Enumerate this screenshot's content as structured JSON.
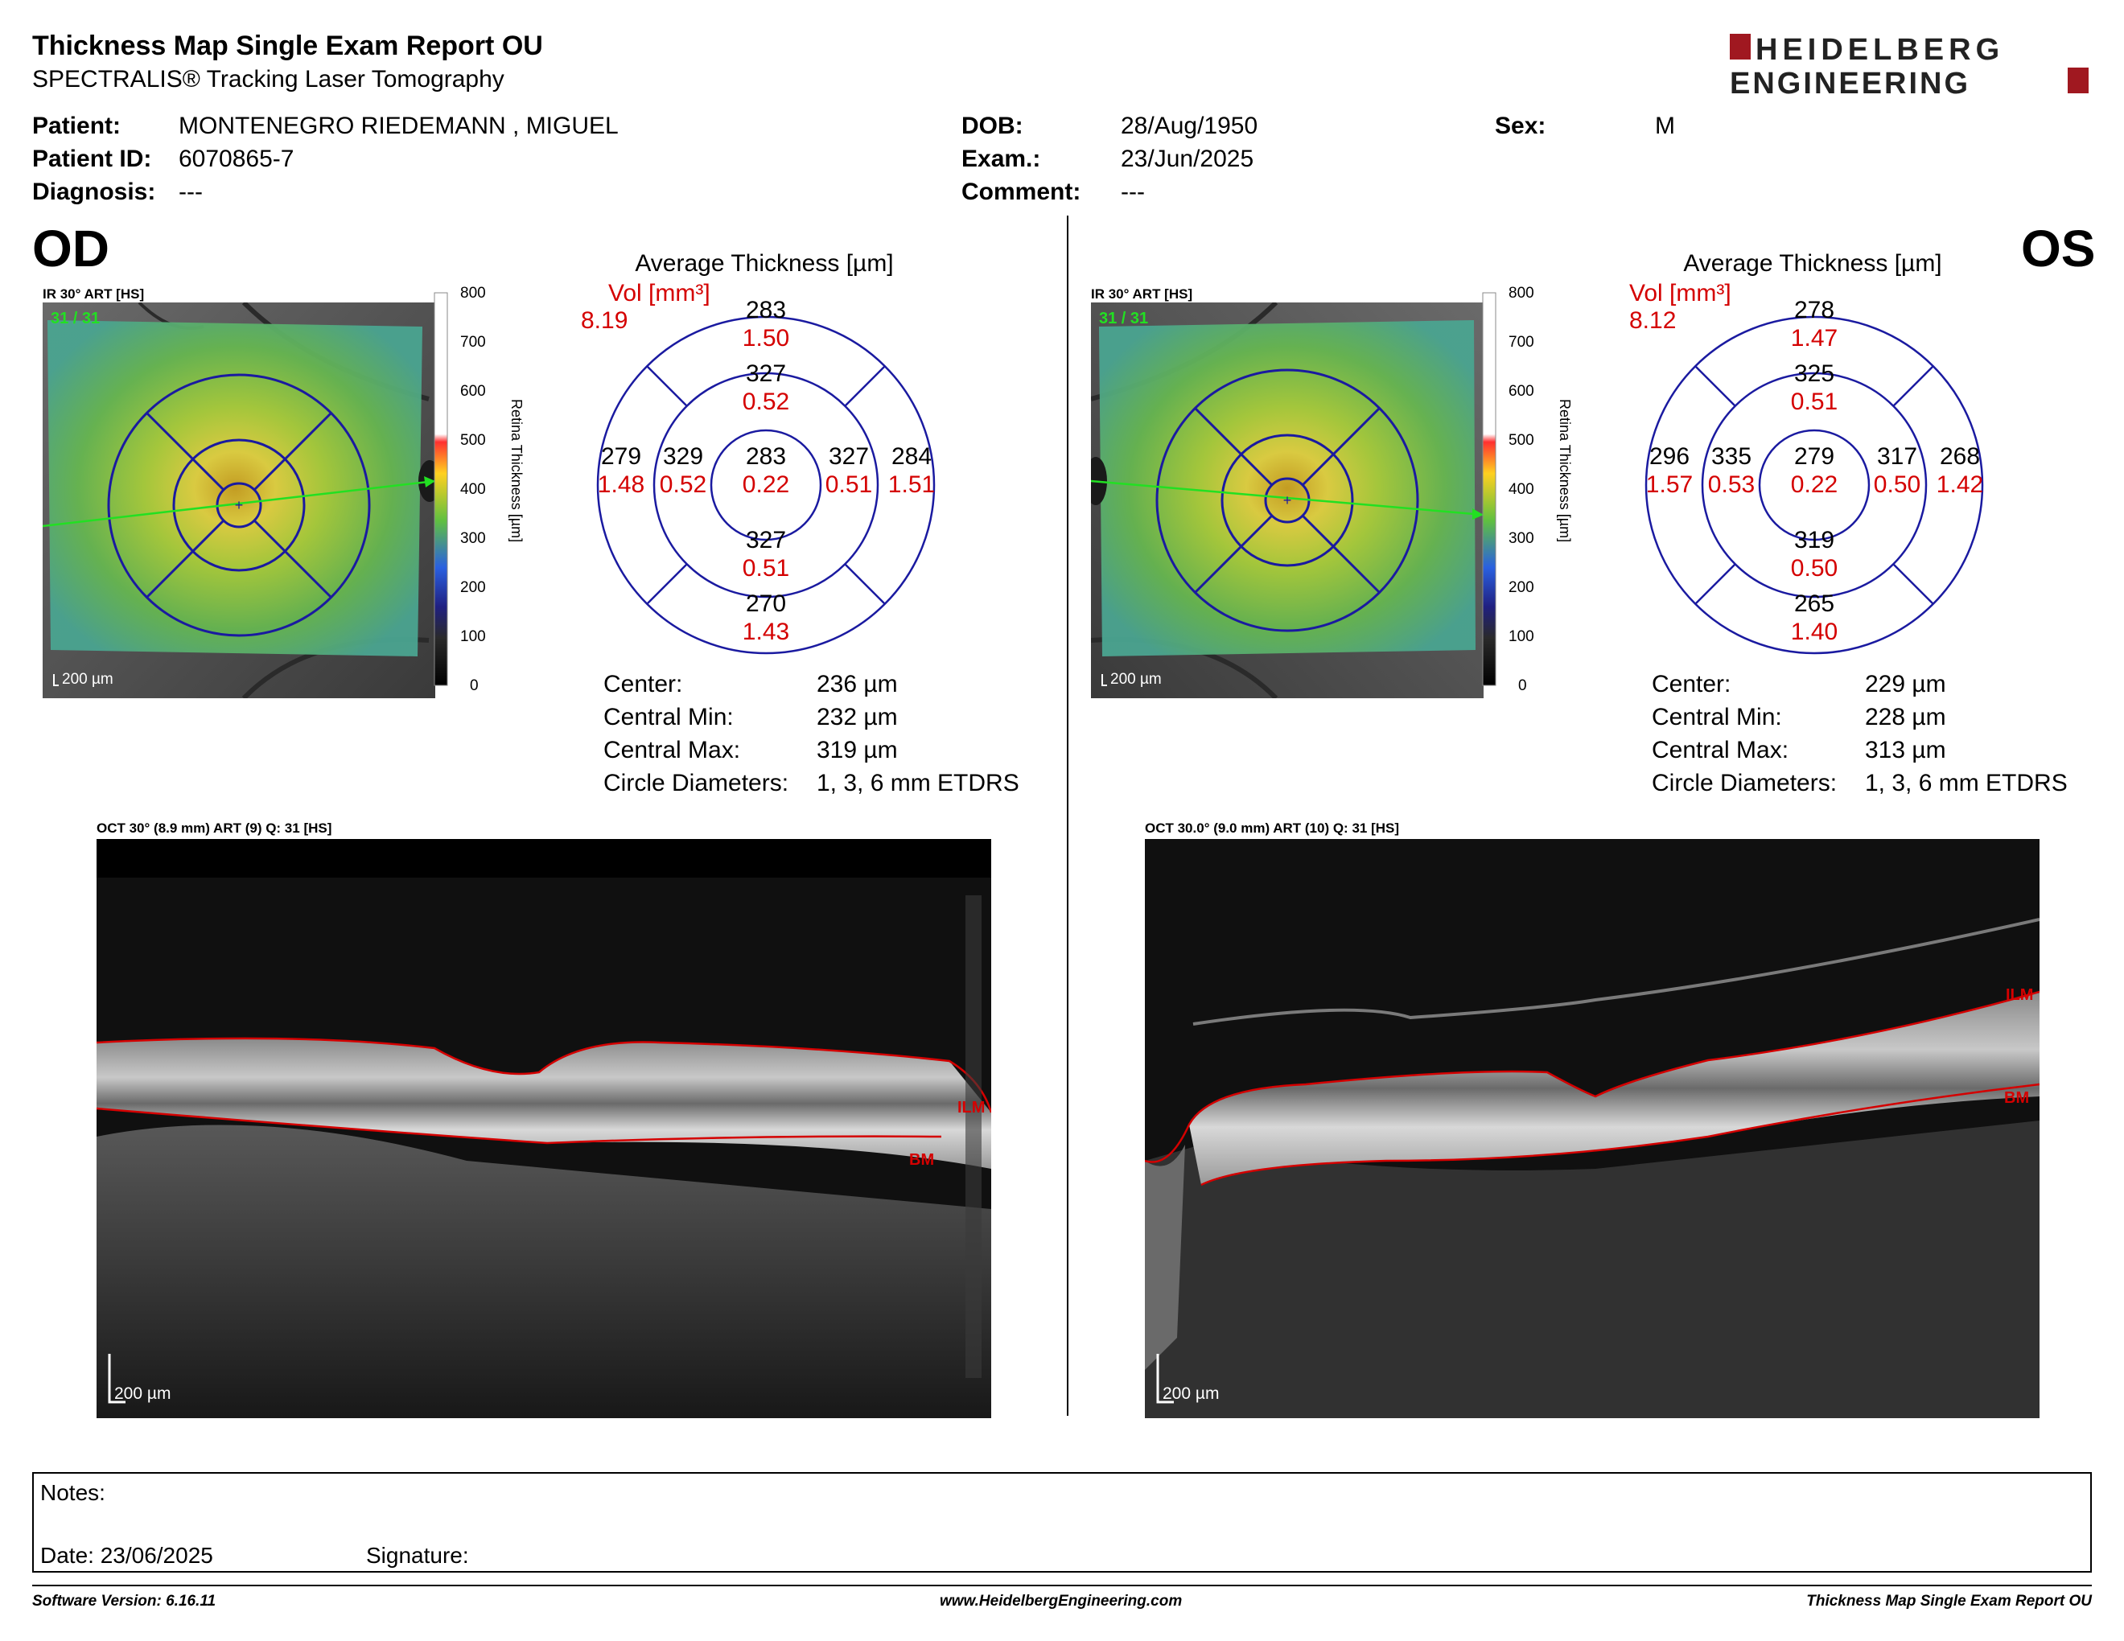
{
  "report": {
    "title": "Thickness Map Single Exam Report OU",
    "subtitle": "SPECTRALIS® Tracking Laser Tomography",
    "logo_line1": "HEIDELBERG",
    "logo_line2": "ENGINEERING"
  },
  "patient": {
    "patient_label": "Patient:",
    "patient_value": "MONTENEGRO RIEDEMANN , MIGUEL",
    "id_label": "Patient ID:",
    "id_value": "6070865-7",
    "diagnosis_label": "Diagnosis:",
    "diagnosis_value": "---",
    "dob_label": "DOB:",
    "dob_value": "28/Aug/1950",
    "exam_label": "Exam.:",
    "exam_value": "23/Jun/2025",
    "comment_label": "Comment:",
    "comment_value": "---",
    "sex_label": "Sex:",
    "sex_value": "M"
  },
  "colors": {
    "accent_red": "#d40000",
    "grid_blue": "#1a1aa0",
    "logo_red": "#a01820"
  },
  "colorbar": {
    "ticks": [
      "800",
      "700",
      "600",
      "500",
      "400",
      "300",
      "200",
      "100",
      "0"
    ],
    "label": "Retina  Thickness [µm]"
  },
  "od": {
    "eye": "OD",
    "ir_caption": "IR 30° ART [HS]",
    "ir_counter": "31 / 31",
    "scale": "200 µm",
    "avg_title": "Average Thickness [µm]",
    "vol_label": "Vol [mm³]",
    "vol_value": "8.19",
    "sectors": {
      "center": {
        "t": "283",
        "v": "0.22"
      },
      "inner_top": {
        "t": "327",
        "v": "0.52"
      },
      "inner_bottom": {
        "t": "327",
        "v": "0.51"
      },
      "inner_left": {
        "t": "329",
        "v": "0.52"
      },
      "inner_right": {
        "t": "327",
        "v": "0.51"
      },
      "outer_top": {
        "t": "283",
        "v": "1.50"
      },
      "outer_bottom": {
        "t": "270",
        "v": "1.43"
      },
      "outer_left": {
        "t": "279",
        "v": "1.48"
      },
      "outer_right": {
        "t": "284",
        "v": "1.51"
      }
    },
    "stats": [
      {
        "label": "Center:",
        "value": "236 µm"
      },
      {
        "label": "Central Min:",
        "value": "232 µm"
      },
      {
        "label": "Central Max:",
        "value": "319 µm"
      },
      {
        "label": "Circle Diameters:",
        "value": "1, 3, 6 mm ETDRS"
      }
    ],
    "oct_caption": "OCT 30° (8.9 mm) ART (9) Q: 31 [HS]",
    "ilm": "ILM",
    "bm": "BM"
  },
  "os": {
    "eye": "OS",
    "ir_caption": "IR 30° ART [HS]",
    "ir_counter": "31 / 31",
    "scale": "200 µm",
    "avg_title": "Average Thickness [µm]",
    "vol_label": "Vol [mm³]",
    "vol_value": "8.12",
    "sectors": {
      "center": {
        "t": "279",
        "v": "0.22"
      },
      "inner_top": {
        "t": "325",
        "v": "0.51"
      },
      "inner_bottom": {
        "t": "319",
        "v": "0.50"
      },
      "inner_left": {
        "t": "335",
        "v": "0.53"
      },
      "inner_right": {
        "t": "317",
        "v": "0.50"
      },
      "outer_top": {
        "t": "278",
        "v": "1.47"
      },
      "outer_bottom": {
        "t": "265",
        "v": "1.40"
      },
      "outer_left": {
        "t": "296",
        "v": "1.57"
      },
      "outer_right": {
        "t": "268",
        "v": "1.42"
      }
    },
    "stats": [
      {
        "label": "Center:",
        "value": "229 µm"
      },
      {
        "label": "Central Min:",
        "value": "228 µm"
      },
      {
        "label": "Central Max:",
        "value": "313 µm"
      },
      {
        "label": "Circle Diameters:",
        "value": "1, 3, 6 mm ETDRS"
      }
    ],
    "oct_caption": "OCT 30.0° (9.0 mm) ART (10) Q: 31 [HS]",
    "ilm": "ILM",
    "bm": "BM"
  },
  "notes": {
    "notes_label": "Notes:",
    "date_label": "Date: 23/06/2025",
    "signature_label": "Signature:"
  },
  "footer": {
    "software": "Software Version: 6.16.11",
    "website": "www.HeidelbergEngineering.com",
    "report_name": "Thickness Map Single Exam Report OU"
  }
}
